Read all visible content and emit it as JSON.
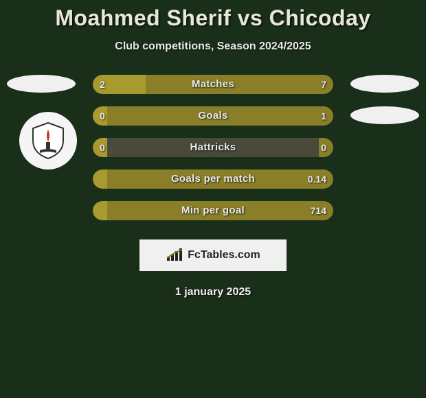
{
  "title": "Moahmed Sherif vs Chicoday",
  "subtitle": "Club competitions, Season 2024/2025",
  "date": "1 january 2025",
  "brand": "FcTables.com",
  "colors": {
    "background": "#1a2f1a",
    "row_bg": "#4a4a3a",
    "fill_left": "#a89a2e",
    "fill_right": "#8a7e28",
    "ellipse": "#f0f0f0",
    "text": "#e8e8e8",
    "title_text": "#e8e8d8"
  },
  "rows": [
    {
      "label": "Matches",
      "left_val": "2",
      "right_val": "7",
      "left_pct": 22,
      "right_pct": 78
    },
    {
      "label": "Goals",
      "left_val": "0",
      "right_val": "1",
      "left_pct": 6,
      "right_pct": 94
    },
    {
      "label": "Hattricks",
      "left_val": "0",
      "right_val": "0",
      "left_pct": 6,
      "right_pct": 6
    },
    {
      "label": "Goals per match",
      "left_val": "",
      "right_val": "0.14",
      "left_pct": 6,
      "right_pct": 94
    },
    {
      "label": "Min per goal",
      "left_val": "",
      "right_val": "714",
      "left_pct": 6,
      "right_pct": 94
    }
  ]
}
